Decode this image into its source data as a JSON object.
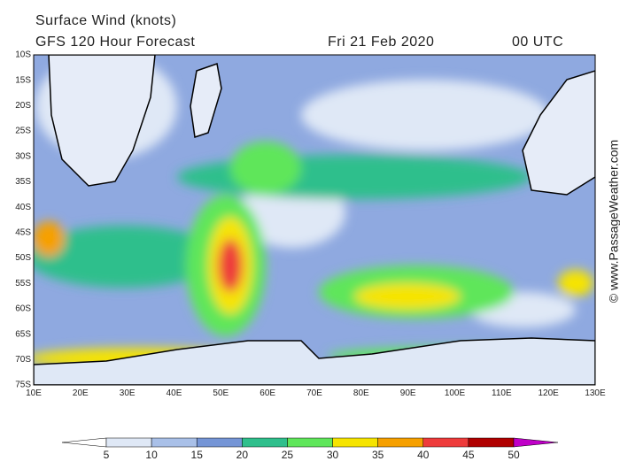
{
  "header": {
    "title": "Surface Wind (knots)",
    "subtitle": "GFS 120 Hour Forecast",
    "date": "Fri 21 Feb 2020",
    "time": "00 UTC"
  },
  "map": {
    "lat_labels": [
      "10S",
      "15S",
      "20S",
      "25S",
      "30S",
      "35S",
      "40S",
      "45S",
      "50S",
      "55S",
      "60S",
      "65S",
      "70S",
      "75S"
    ],
    "lon_labels": [
      "10E",
      "20E",
      "30E",
      "40E",
      "50E",
      "60E",
      "70E",
      "80E",
      "90E",
      "100E",
      "110E",
      "120E",
      "130E"
    ]
  },
  "legend": {
    "ticks": [
      5,
      10,
      15,
      20,
      25,
      30,
      35,
      40,
      45,
      50
    ],
    "colors": [
      "#ffffff",
      "#dfe8f6",
      "#a9c0e8",
      "#7595d6",
      "#2fbf8c",
      "#5fe65a",
      "#f6e400",
      "#f6a000",
      "#ee3b3b",
      "#b00000",
      "#c000c8"
    ]
  },
  "credit": "© www.PassageWeather.com"
}
